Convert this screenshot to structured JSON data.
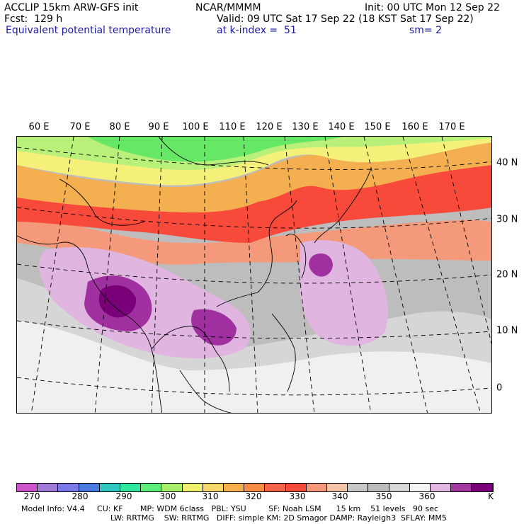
{
  "header": {
    "model": "ACCLIP 15km ARW-GFS init",
    "center": "NCAR/MMMM",
    "init": "Init: 00 UTC Mon 12 Sep 22",
    "fcst": "Fcst:  129 h",
    "valid": "Valid: 09 UTC Sat 17 Sep 22 (18 KST Sat 17 Sep 22)",
    "field": "Equivalent potential temperature",
    "level": "at k-index =  51",
    "smooth": "sm= 2"
  },
  "map": {
    "lon_labels": [
      "60 E",
      "70 E",
      "80 E",
      "90 E",
      "100 E",
      "110 E",
      "120 E",
      "130 E",
      "140 E",
      "150 E",
      "160 E",
      "170 E"
    ],
    "lat_labels": [
      "40 N",
      "30 N",
      "20 N",
      "10 N",
      "0"
    ],
    "colors": {
      "land_gray": "#bdbdbd",
      "light_gray": "#d6d6d6",
      "white": "#f4f4f4",
      "green": "#66e866",
      "yellow_green": "#b8f07a",
      "yellow": "#f4f07a",
      "orange": "#f4b050",
      "red_orange": "#f46a46",
      "red": "#f84a3a",
      "salmon": "#f49a7a",
      "lilac": "#e0b6e0",
      "purple": "#a030a0",
      "dark_purple": "#7a007a"
    }
  },
  "colorbar": {
    "colors": [
      "#cc55cc",
      "#a27ad8",
      "#7a7ae8",
      "#4a7ae0",
      "#2fc8c0",
      "#2fe8a0",
      "#5ef07a",
      "#a8f06a",
      "#f0f070",
      "#f6d86a",
      "#f6b050",
      "#f68c46",
      "#f6624a",
      "#f84a3a",
      "#f6987a",
      "#f4c4a8",
      "#c8c8c8",
      "#bdbdbd",
      "#d8d8d8",
      "#f4f4f4",
      "#e2b8e2",
      "#a23aa2",
      "#7a007a"
    ],
    "ticks": [
      "270",
      "280",
      "290",
      "300",
      "310",
      "320",
      "330",
      "340",
      "350",
      "360"
    ],
    "unit": "K"
  },
  "footer": {
    "line1": "Model Info: V4.4     CU: KF       MP: WDM 6class   PBL: YSU         SF: Noah LSM      15 km    51 levels   90 sec",
    "line2": "LW: RRTMG    SW: RRTMG   DIFF: simple KM: 2D Smagor DAMP: Rayleigh3  SFLAY: MM5"
  }
}
